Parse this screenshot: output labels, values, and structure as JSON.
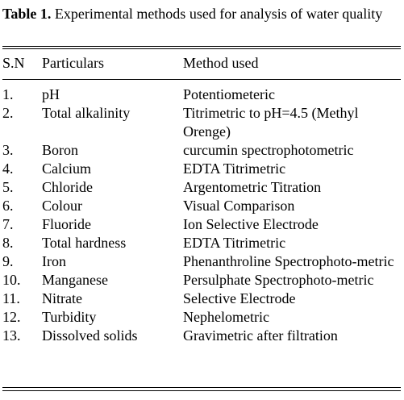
{
  "caption": {
    "label": "Table 1.",
    "text": " Experimental methods used for analysis of water quality"
  },
  "headers": {
    "sn": "S.N",
    "particulars": "Particulars",
    "method": "Method used"
  },
  "rows": [
    {
      "sn": "1.",
      "particular": "pH",
      "method": "Potentiometeric"
    },
    {
      "sn": "2.",
      "particular": "Total alkalinity",
      "method": "Titrimetric to pH=4.5 (Methyl Orenge)"
    },
    {
      "sn": "3.",
      "particular": "Boron",
      "method": "curcumin spectrophotometric"
    },
    {
      "sn": "4.",
      "particular": "Calcium",
      "method": "EDTA Titrimetric"
    },
    {
      "sn": "5.",
      "particular": "Chloride",
      "method": "Argentometric Titration"
    },
    {
      "sn": "6.",
      "particular": "Colour",
      "method": "Visual Comparison"
    },
    {
      "sn": "7.",
      "particular": "Fluoride",
      "method": "Ion Selective Electrode"
    },
    {
      "sn": "8.",
      "particular": "Total hardness",
      "method": "EDTA Titrimetric"
    },
    {
      "sn": "9.",
      "particular": "Iron",
      "method": "Phenanthroline Spectrophoto-metric"
    },
    {
      "sn": "10.",
      "particular": "Manganese",
      "method": "Persulphate Spectrophoto-metric"
    },
    {
      "sn": "11.",
      "particular": "Nitrate",
      "method": "Selective Electrode"
    },
    {
      "sn": "12.",
      "particular": "Turbidity",
      "method": "Nephelometric"
    },
    {
      "sn": "13.",
      "particular": "Dissolved solids",
      "method": "Gravimetric after filtration"
    }
  ]
}
